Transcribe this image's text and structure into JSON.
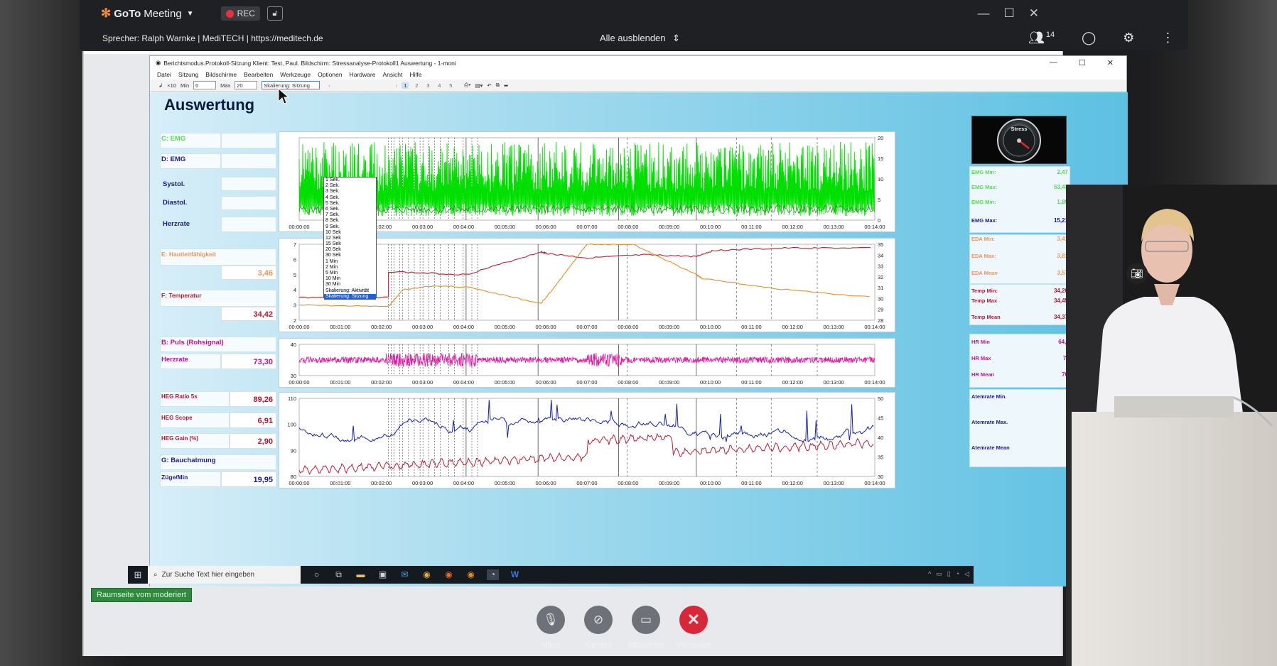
{
  "gtm": {
    "app_name_bold": "GoTo",
    "app_name_rest": "Meeting",
    "rec_label": "REC",
    "speaker_text": "Sprecher: Ralph  Warnke | MediTECH | https://meditech.de",
    "hide_all": "Alle ausblenden",
    "participant_count": "14",
    "moderated_label": "Raumseite vom moderiert"
  },
  "controls": [
    {
      "label": "Mikro"
    },
    {
      "label": "Kamera"
    },
    {
      "label": "Bildschirm"
    },
    {
      "label": "Verlassen"
    }
  ],
  "app": {
    "title": "Berichtsmodus.Protokoll-Sitzung Klient: Test, Paul. Bildschirm: Stressanalyse-Protokoll1 Auswertung - 1-moni",
    "menu": [
      "Datei",
      "Sitzung",
      "Bildschirme",
      "Bearbeiten",
      "Werkzeuge",
      "Optionen",
      "Hardware",
      "Ansicht",
      "Hilfe"
    ],
    "toolbar": {
      "x10": "×10",
      "min_label": "Min",
      "min_value": "0",
      "max_label": "Max",
      "max_value": "20",
      "scale_value": "Skalierung: Sitzung",
      "pages": [
        "1",
        "2",
        "3",
        "4",
        "5"
      ]
    },
    "heading": "Auswertung",
    "dropdown_options": [
      "1 Sek.",
      "2 Sek.",
      "3 Sek.",
      "4 Sek.",
      "5 Sek.",
      "6 Sek.",
      "7 Sek.",
      "8 Sek.",
      "9 Sek.",
      "10 Sek",
      "12 Sek",
      "15 Sek",
      "20 Sek",
      "30 Sek",
      "1 Min",
      "2 Min",
      "5 Min",
      "10 Min",
      "30 Min",
      "Skalierung: Aktivität",
      "Skalierung: Sitzung"
    ],
    "dropdown_selected": "Skalierung: Sitzung",
    "left_labels": {
      "c_emg": "C: EMG",
      "d_emg": "D: EMG",
      "systol": "Systol.",
      "diastol": "Diastol.",
      "herzrate1": "Herzrate",
      "e_haut": "E: Hautleitfähigkeit",
      "e_haut_val": "3,46",
      "f_temp": "F: Temperatur",
      "f_temp_val": "34,42",
      "b_puls": "B: Puls (Rohsignal)",
      "herzrate2": "Herzrate",
      "herzrate2_val": "73,30",
      "heg_ratio": "HEG Ratio 5s",
      "heg_ratio_val": "89,26",
      "heg_scope": "HEG Scope",
      "heg_scope_val": "6,91",
      "heg_gain": "HEG Gain (%)",
      "heg_gain_val": "2,90",
      "g_bauch": "G: Bauchatmung",
      "zuege": "Züge/Min",
      "zuege_val": "19,95"
    },
    "right_stats": {
      "emg_min1": "EMG Min:",
      "emg_min1_val": "2,47",
      "emg_max1": "EMG Max:",
      "emg_max1_val": "53,43",
      "emg_min2": "EMG Min:",
      "emg_min2_val": "1,85",
      "emg_max2": "EMG Max:",
      "emg_max2_val": "15,21",
      "eda_min": "EDA Min:",
      "eda_min_val": "3,41",
      "eda_max": "EDA Max:",
      "eda_max_val": "3,81",
      "eda_mean": "EDA Mean",
      "eda_mean_val": "3,57",
      "temp_min": "Temp Min:",
      "temp_min_val": "34,20",
      "temp_max": "Temp Max",
      "temp_max_val": "34,45",
      "temp_mean": "Temp Mean",
      "temp_mean_val": "34,37",
      "hr_min": "HR Min",
      "hr_min_val": "64,(",
      "hr_max": "HR Max",
      "hr_max_val": "7!",
      "hr_mean": "HR Mean",
      "hr_mean_val": "70",
      "atem_min": "Atemrate Min.",
      "atem_max": "Atemrate Max.",
      "atem_mean": "Atemrate Mean"
    },
    "gauge_label": "Stress",
    "time_ticks": [
      "00:00:00",
      "00:01:00",
      "00:02:00",
      "00:03:00",
      "00:04:00",
      "00:05:00",
      "00:06:00",
      "00:07:00",
      "00:08:00",
      "00:09:00",
      "00:10:00",
      "00:11:00",
      "00:12:00",
      "00:13:00",
      "00:14:00"
    ],
    "taskbar_search": "Zur Suche Text hier eingeben"
  },
  "chart_data": [
    {
      "type": "line",
      "title": "",
      "x_range": [
        "00:00:00",
        "00:14:00"
      ],
      "y_right_ticks": [
        "0",
        "5",
        "10",
        "15",
        "20"
      ],
      "series": [
        {
          "color": "#00e000"
        },
        {
          "color": "#2c8a2c"
        }
      ]
    },
    {
      "type": "line",
      "title": "",
      "x_range": [
        "00:00:00",
        "00:14:00"
      ],
      "y_left_ticks": [
        "2",
        "3",
        "4",
        "5",
        "6",
        "7"
      ],
      "y_right_ticks": [
        "28",
        "29",
        "30",
        "31",
        "32",
        "33",
        "34",
        "35"
      ],
      "series": [
        {
          "color": "#c0222e"
        },
        {
          "color": "#e09030"
        }
      ]
    },
    {
      "type": "line",
      "title": "",
      "x_range": [
        "00:00:00",
        "00:14:00"
      ],
      "y_left_ticks": [
        "30",
        "40"
      ],
      "series": [
        {
          "color": "#e01ca0"
        }
      ]
    },
    {
      "type": "line",
      "title": "",
      "x_range": [
        "00:00:00",
        "00:14:00"
      ],
      "y_left_ticks": [
        "80",
        "90",
        "100",
        "110"
      ],
      "y_right_ticks": [
        "30",
        "35",
        "40",
        "45",
        "50"
      ],
      "series": [
        {
          "color": "#1020c0"
        },
        {
          "color": "#c02030"
        }
      ]
    }
  ],
  "colors": {
    "emg_label": "#58d858",
    "eda_label": "#e8965a",
    "temp_label": "#b01c34",
    "puls_label": "#c0128e",
    "heg_label": "#b8122e",
    "blue_label": "#1a1a8c",
    "rec_dot": "#e8313d",
    "leave": "#d9273a"
  }
}
